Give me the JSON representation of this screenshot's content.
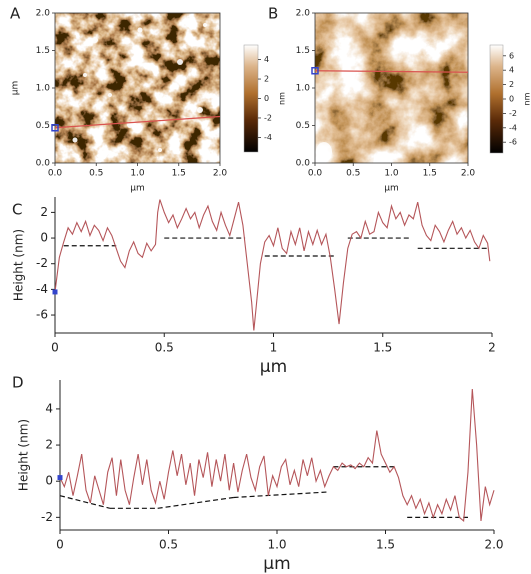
{
  "chart_data": [
    {
      "type": "image",
      "label": "A",
      "xlabel": "µm",
      "ylabel": "µm",
      "xlim": [
        0,
        2
      ],
      "ylim": [
        0,
        2
      ],
      "xticks": [
        {
          "value": 0,
          "label": "0.0"
        },
        {
          "value": 0.5,
          "label": "0.5"
        },
        {
          "value": 1,
          "label": "1.0"
        },
        {
          "value": 1.5,
          "label": "1.5"
        },
        {
          "value": 2,
          "label": "2.0"
        }
      ],
      "yticks": [
        {
          "value": 0,
          "label": "0.0"
        },
        {
          "value": 0.5,
          "label": "0.5"
        },
        {
          "value": 1,
          "label": "1.0"
        },
        {
          "value": 1.5,
          "label": "1.5"
        },
        {
          "value": 2,
          "label": "2.0"
        }
      ],
      "colorbar": {
        "label": "nm",
        "zlim": [
          -5.5,
          5.5
        ],
        "ticks": [
          4,
          2,
          0,
          -2,
          -4
        ]
      },
      "profile_line": {
        "x": [
          0,
          2
        ],
        "y": [
          0.47,
          0.62
        ],
        "color": "#d9534f"
      },
      "start_marker_color": "#3344cc"
    },
    {
      "type": "image",
      "label": "B",
      "xlabel": "µm",
      "xlim": [
        0,
        2
      ],
      "ylim": [
        0,
        2
      ],
      "xticks": [
        {
          "value": 0,
          "label": "0.0"
        },
        {
          "value": 0.5,
          "label": "0.5"
        },
        {
          "value": 1,
          "label": "1.0"
        },
        {
          "value": 1.5,
          "label": "1.5"
        },
        {
          "value": 2,
          "label": "2.0"
        }
      ],
      "yticks": [
        {
          "value": 0,
          "label": "0.0"
        },
        {
          "value": 0.5,
          "label": "0.5"
        },
        {
          "value": 1,
          "label": "1.0"
        },
        {
          "value": 1.5,
          "label": "1.5"
        },
        {
          "value": 2,
          "label": "2.0"
        }
      ],
      "colorbar": {
        "label": "nm",
        "zlim": [
          -7.5,
          7.5
        ],
        "ticks": [
          6,
          4,
          2,
          0,
          -2,
          -4,
          -6
        ]
      },
      "profile_line": {
        "x": [
          0,
          2
        ],
        "y": [
          1.23,
          1.21
        ],
        "color": "#d9534f"
      },
      "start_marker_color": "#3344cc"
    },
    {
      "type": "line",
      "label": "C",
      "xlabel": "µm",
      "ylabel": "Height (nm)",
      "xlim": [
        0,
        2
      ],
      "ylim": [
        -7.4,
        3.2
      ],
      "xticks": [
        0,
        0.5,
        1,
        1.5,
        2
      ],
      "yticks": [
        2,
        0,
        -2,
        -4,
        -6
      ],
      "color": "#b5565a",
      "start_marker_color": "#3344cc",
      "x": [
        0,
        0.02,
        0.04,
        0.06,
        0.08,
        0.1,
        0.12,
        0.14,
        0.16,
        0.18,
        0.2,
        0.22,
        0.24,
        0.26,
        0.28,
        0.3,
        0.32,
        0.34,
        0.36,
        0.38,
        0.4,
        0.42,
        0.44,
        0.46,
        0.47,
        0.48,
        0.5,
        0.52,
        0.54,
        0.56,
        0.58,
        0.6,
        0.62,
        0.64,
        0.66,
        0.68,
        0.7,
        0.72,
        0.74,
        0.76,
        0.78,
        0.8,
        0.82,
        0.84,
        0.86,
        0.88,
        0.9,
        0.91,
        0.92,
        0.94,
        0.96,
        0.98,
        1.0,
        1.02,
        1.04,
        1.06,
        1.08,
        1.1,
        1.12,
        1.14,
        1.16,
        1.18,
        1.2,
        1.22,
        1.24,
        1.26,
        1.28,
        1.3,
        1.32,
        1.34,
        1.36,
        1.38,
        1.4,
        1.42,
        1.44,
        1.46,
        1.48,
        1.5,
        1.52,
        1.54,
        1.56,
        1.58,
        1.6,
        1.62,
        1.64,
        1.66,
        1.68,
        1.7,
        1.72,
        1.74,
        1.76,
        1.78,
        1.8,
        1.82,
        1.84,
        1.86,
        1.88,
        1.9,
        1.92,
        1.94,
        1.96,
        1.98,
        1.99
      ],
      "values": [
        -4.2,
        -1.5,
        -0.3,
        0.8,
        0.3,
        1.2,
        0.5,
        1.3,
        0.2,
        1.0,
        0.6,
        -0.2,
        0.8,
        0.2,
        -0.8,
        -1.8,
        -2.3,
        -1.0,
        -0.3,
        -1.2,
        -1.5,
        -0.4,
        -1.0,
        -0.5,
        2.0,
        3.0,
        2.0,
        1.2,
        1.8,
        0.8,
        1.5,
        2.3,
        1.5,
        2.0,
        0.8,
        1.8,
        2.5,
        1.3,
        0.6,
        2.0,
        1.0,
        0.2,
        1.5,
        2.8,
        1.0,
        -2.0,
        -5.0,
        -7.2,
        -5.5,
        -2.0,
        -0.3,
        0.2,
        -0.6,
        0.8,
        -0.8,
        -1.2,
        0.5,
        -0.5,
        0.8,
        -1.0,
        0.5,
        -0.5,
        0.6,
        -0.5,
        0.3,
        -1.5,
        -4.0,
        -6.7,
        -3.5,
        -0.8,
        0.3,
        0.5,
        0.0,
        1.3,
        0.3,
        0.5,
        2.0,
        1.2,
        0.8,
        2.5,
        1.5,
        2.0,
        1.0,
        1.8,
        1.5,
        2.8,
        1.0,
        0.2,
        -0.2,
        1.0,
        0.5,
        -0.3,
        0.6,
        1.3,
        0.3,
        0.8,
        0.0,
        0.6,
        -0.3,
        -0.8,
        0.2,
        -0.4,
        -1.8
      ],
      "levels": [
        {
          "x": [
            0.04,
            0.28
          ],
          "y": [
            -0.6,
            -0.6
          ]
        },
        {
          "x": [
            0.5,
            0.87
          ],
          "y": [
            0,
            0
          ]
        },
        {
          "x": [
            0.96,
            1.28
          ],
          "y": [
            -1.4,
            -1.4
          ]
        },
        {
          "x": [
            1.34,
            1.63
          ],
          "y": [
            0,
            0
          ]
        },
        {
          "x": [
            1.66,
            1.98
          ],
          "y": [
            -0.8,
            -0.8
          ]
        }
      ]
    },
    {
      "type": "line",
      "label": "D",
      "xlabel": "µm",
      "ylabel": "Height (nm)",
      "xlim": [
        0,
        2
      ],
      "ylim": [
        -2.7,
        5.6
      ],
      "xticks": [
        0,
        0.5,
        {
          "value": 1,
          "label": "1.0"
        },
        1.5,
        {
          "value": 2,
          "label": "2.0"
        }
      ],
      "yticks": [
        4,
        2,
        0,
        -2
      ],
      "color": "#b5565a",
      "start_marker_color": "#3344cc",
      "x": [
        0,
        0.02,
        0.04,
        0.06,
        0.08,
        0.1,
        0.12,
        0.14,
        0.16,
        0.18,
        0.2,
        0.22,
        0.24,
        0.26,
        0.28,
        0.3,
        0.32,
        0.34,
        0.36,
        0.38,
        0.4,
        0.42,
        0.44,
        0.46,
        0.48,
        0.5,
        0.52,
        0.54,
        0.56,
        0.58,
        0.6,
        0.62,
        0.64,
        0.66,
        0.68,
        0.7,
        0.72,
        0.74,
        0.76,
        0.78,
        0.8,
        0.82,
        0.84,
        0.86,
        0.88,
        0.9,
        0.92,
        0.94,
        0.96,
        0.98,
        1.0,
        1.02,
        1.04,
        1.06,
        1.08,
        1.1,
        1.12,
        1.14,
        1.16,
        1.18,
        1.2,
        1.22,
        1.24,
        1.26,
        1.28,
        1.3,
        1.32,
        1.34,
        1.36,
        1.38,
        1.4,
        1.42,
        1.44,
        1.46,
        1.48,
        1.5,
        1.52,
        1.54,
        1.56,
        1.58,
        1.6,
        1.62,
        1.64,
        1.66,
        1.68,
        1.7,
        1.72,
        1.74,
        1.76,
        1.78,
        1.8,
        1.82,
        1.84,
        1.86,
        1.88,
        1.9,
        1.92,
        1.94,
        1.96,
        1.98,
        2.0
      ],
      "values": [
        0.2,
        -0.3,
        0.5,
        -0.8,
        0.3,
        1.5,
        -0.5,
        -1.2,
        0.3,
        -0.5,
        -1.3,
        0.5,
        1.3,
        -0.8,
        1.2,
        -0.5,
        -1.3,
        0.2,
        1.5,
        -0.2,
        1.2,
        -0.5,
        -1.2,
        0.0,
        -1.0,
        0.5,
        1.7,
        0.3,
        1.5,
        -0.2,
        1.0,
        -0.8,
        1.2,
        0.2,
        1.6,
        -0.3,
        1.2,
        0.0,
        1.5,
        -0.5,
        1.0,
        -0.6,
        0.6,
        1.5,
        0.2,
        -0.5,
        0.8,
        1.4,
        -0.8,
        0.3,
        -0.3,
        0.8,
        1.2,
        -0.2,
        0.6,
        -0.3,
        1.2,
        0.3,
        1.3,
        0.0,
        0.6,
        -0.3,
        0.3,
        0.8,
        0.6,
        1.0,
        0.8,
        0.9,
        0.7,
        1.0,
        0.8,
        1.3,
        1.0,
        2.8,
        1.5,
        1.0,
        0.5,
        0.8,
        0.2,
        -0.8,
        -1.3,
        -0.8,
        -1.5,
        -1.0,
        -1.8,
        -1.2,
        -2.0,
        -1.3,
        -1.8,
        -1.0,
        -1.6,
        -0.8,
        -2.0,
        -2.2,
        0.5,
        5.1,
        2.0,
        -2.2,
        -0.3,
        -1.3,
        -0.5
      ],
      "levels": [
        {
          "x": [
            0,
            0.23
          ],
          "y": [
            -0.8,
            -1.5
          ]
        },
        {
          "x": [
            0.23,
            0.45
          ],
          "y": [
            -1.5,
            -1.5
          ]
        },
        {
          "x": [
            0.45,
            0.8
          ],
          "y": [
            -1.5,
            -0.9
          ]
        },
        {
          "x": [
            0.8,
            1.23
          ],
          "y": [
            -0.9,
            -0.6
          ]
        },
        {
          "x": [
            1.26,
            1.55
          ],
          "y": [
            0.8,
            0.8
          ]
        },
        {
          "x": [
            1.6,
            1.88
          ],
          "y": [
            -2.0,
            -2.0
          ]
        }
      ]
    }
  ]
}
